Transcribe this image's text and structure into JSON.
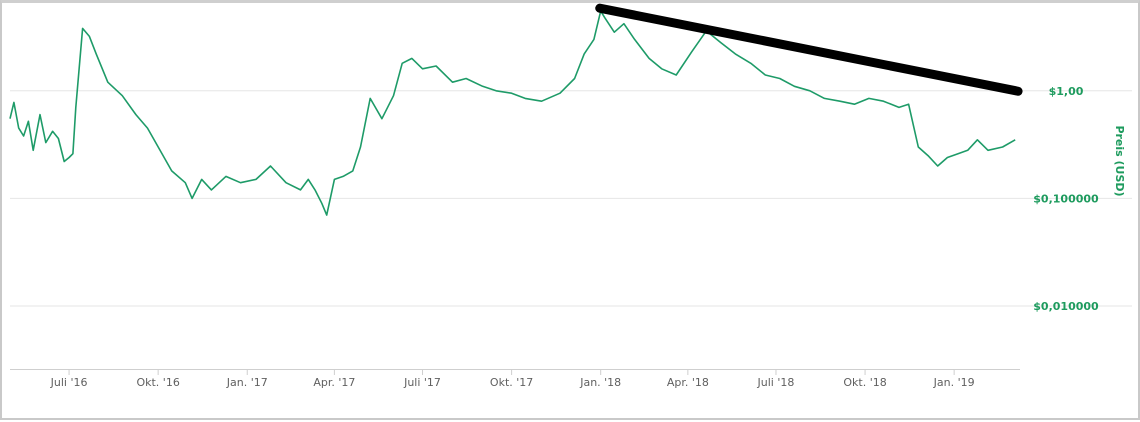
{
  "chart_data": {
    "type": "line",
    "title": "",
    "xlabel": "",
    "ylabel": "Preis (USD)",
    "y_scale": "log",
    "ylim": [
      0.0026,
      6.0
    ],
    "xlim": [
      "2016-05-01",
      "2019-03-10"
    ],
    "grid": true,
    "line_color": "#1e9b68",
    "trendline_color": "#000000",
    "x_ticks": [
      {
        "date": "2016-07-01",
        "label": "Juli '16"
      },
      {
        "date": "2016-10-01",
        "label": "Okt. '16"
      },
      {
        "date": "2017-01-01",
        "label": "Jan. '17"
      },
      {
        "date": "2017-04-01",
        "label": "Apr. '17"
      },
      {
        "date": "2017-07-01",
        "label": "Juli '17"
      },
      {
        "date": "2017-10-01",
        "label": "Okt. '17"
      },
      {
        "date": "2018-01-01",
        "label": "Jan. '18"
      },
      {
        "date": "2018-04-01",
        "label": "Apr. '18"
      },
      {
        "date": "2018-07-01",
        "label": "Juli '18"
      },
      {
        "date": "2018-10-01",
        "label": "Okt. '18"
      },
      {
        "date": "2019-01-01",
        "label": "Jan. '19"
      }
    ],
    "y_ticks": [
      {
        "value": 1.0,
        "label": "$1,00"
      },
      {
        "value": 0.1,
        "label": "$0,100000"
      },
      {
        "value": 0.01,
        "label": "$0,010000"
      }
    ],
    "series": [
      {
        "x": [
          "2016-05-01",
          "2016-05-05",
          "2016-05-10",
          "2016-05-15",
          "2016-05-20",
          "2016-05-25",
          "2016-06-01",
          "2016-06-07",
          "2016-06-14",
          "2016-06-20",
          "2016-06-26",
          "2016-07-01",
          "2016-07-05",
          "2016-07-08",
          "2016-07-15",
          "2016-07-22",
          "2016-07-29",
          "2016-08-10",
          "2016-08-25",
          "2016-09-08",
          "2016-09-20",
          "2016-10-01",
          "2016-10-15",
          "2016-10-29",
          "2016-11-05",
          "2016-11-15",
          "2016-11-25",
          "2016-12-10",
          "2016-12-25",
          "2017-01-10",
          "2017-01-25",
          "2017-02-10",
          "2017-02-25",
          "2017-03-05",
          "2017-03-12",
          "2017-03-19",
          "2017-03-24",
          "2017-04-01",
          "2017-04-10",
          "2017-04-20",
          "2017-04-28",
          "2017-05-08",
          "2017-05-20",
          "2017-06-01",
          "2017-06-10",
          "2017-06-20",
          "2017-07-01",
          "2017-07-15",
          "2017-08-01",
          "2017-08-15",
          "2017-09-01",
          "2017-09-15",
          "2017-10-01",
          "2017-10-15",
          "2017-11-01",
          "2017-11-20",
          "2017-12-05",
          "2017-12-15",
          "2017-12-25",
          "2018-01-01",
          "2018-01-05",
          "2018-01-15",
          "2018-01-25",
          "2018-02-05",
          "2018-02-20",
          "2018-03-05",
          "2018-03-20",
          "2018-04-05",
          "2018-04-20",
          "2018-05-05",
          "2018-05-20",
          "2018-06-05",
          "2018-06-20",
          "2018-07-05",
          "2018-07-20",
          "2018-08-05",
          "2018-08-20",
          "2018-09-05",
          "2018-09-20",
          "2018-10-05",
          "2018-10-20",
          "2018-11-05",
          "2018-11-15",
          "2018-11-25",
          "2018-12-05",
          "2018-12-15",
          "2018-12-25",
          "2019-01-05",
          "2019-01-15",
          "2019-01-25",
          "2019-02-05",
          "2019-02-20",
          "2019-03-05"
        ],
        "y": [
          0.55,
          0.78,
          0.45,
          0.38,
          0.52,
          0.28,
          0.6,
          0.33,
          0.42,
          0.36,
          0.22,
          0.24,
          0.26,
          0.7,
          3.8,
          3.2,
          2.2,
          1.2,
          0.9,
          0.6,
          0.45,
          0.3,
          0.18,
          0.14,
          0.1,
          0.15,
          0.12,
          0.16,
          0.14,
          0.15,
          0.2,
          0.14,
          0.12,
          0.15,
          0.12,
          0.09,
          0.07,
          0.15,
          0.16,
          0.18,
          0.3,
          0.85,
          0.55,
          0.9,
          1.8,
          2.0,
          1.6,
          1.7,
          1.2,
          1.3,
          1.1,
          1.0,
          0.95,
          0.85,
          0.8,
          0.95,
          1.3,
          2.2,
          3.0,
          5.5,
          4.8,
          3.5,
          4.2,
          3.0,
          2.0,
          1.6,
          1.4,
          2.3,
          3.6,
          2.8,
          2.2,
          1.8,
          1.4,
          1.3,
          1.1,
          1.0,
          0.85,
          0.8,
          0.75,
          0.85,
          0.8,
          0.7,
          0.75,
          0.3,
          0.25,
          0.2,
          0.24,
          0.26,
          0.28,
          0.35,
          0.28,
          0.3,
          0.35
        ]
      }
    ],
    "trendline": {
      "x": [
        "2017-12-31",
        "2019-03-08"
      ],
      "y": [
        5.85,
        0.99
      ]
    }
  }
}
